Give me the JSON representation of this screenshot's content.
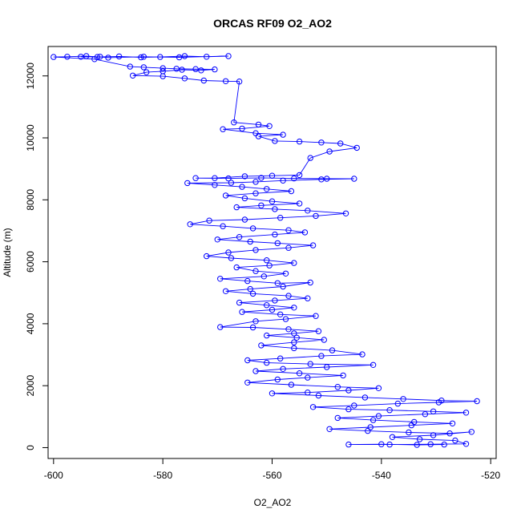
{
  "chart_data": {
    "type": "scatter",
    "title": "ORCAS RF09 O2_AO2",
    "xlabel": "O2_AO2",
    "ylabel": "Altitude (m)",
    "xlim": [
      -601,
      -519
    ],
    "ylim": [
      -350,
      12950
    ],
    "xticks": [
      -600,
      -580,
      -560,
      -540,
      -520
    ],
    "yticks": [
      0,
      2000,
      4000,
      6000,
      8000,
      10000,
      12000
    ],
    "grid": false,
    "legend": "none",
    "color": "#0000ff",
    "series": [
      {
        "points": [
          [
            -591.5,
            12620
          ],
          [
            -595.0,
            12620
          ],
          [
            -592.0,
            12610
          ],
          [
            -588.0,
            12630
          ],
          [
            -584.0,
            12600
          ],
          [
            -580.5,
            12610
          ],
          [
            -576.0,
            12640
          ],
          [
            -572.0,
            12620
          ],
          [
            -568.0,
            12640
          ],
          [
            -577.0,
            12600
          ],
          [
            -583.5,
            12620
          ],
          [
            -590.0,
            12590
          ],
          [
            -594.0,
            12640
          ],
          [
            -597.5,
            12620
          ],
          [
            -600.0,
            12610
          ],
          [
            -592.5,
            12540
          ],
          [
            -586.0,
            12300
          ],
          [
            -583.5,
            12280
          ],
          [
            -580.0,
            12250
          ],
          [
            -577.5,
            12230
          ],
          [
            -574.0,
            12220
          ],
          [
            -570.5,
            12210
          ],
          [
            -573.0,
            12180
          ],
          [
            -576.5,
            12200
          ],
          [
            -580.0,
            12150
          ],
          [
            -583.0,
            12120
          ],
          [
            -585.5,
            12010
          ],
          [
            -580.0,
            11990
          ],
          [
            -576.0,
            11920
          ],
          [
            -572.5,
            11850
          ],
          [
            -568.5,
            11830
          ],
          [
            -566.0,
            11820
          ],
          [
            -567.0,
            10500
          ],
          [
            -562.5,
            10430
          ],
          [
            -560.5,
            10380
          ],
          [
            -565.5,
            10300
          ],
          [
            -569.0,
            10280
          ],
          [
            -563.0,
            10150
          ],
          [
            -558.0,
            10100
          ],
          [
            -562.5,
            10050
          ],
          [
            -559.5,
            9900
          ],
          [
            -555.0,
            9880
          ],
          [
            -551.0,
            9850
          ],
          [
            -547.5,
            9820
          ],
          [
            -544.5,
            9680
          ],
          [
            -549.5,
            9560
          ],
          [
            -553.0,
            9350
          ],
          [
            -555.0,
            8800
          ],
          [
            -560.0,
            8780
          ],
          [
            -565.0,
            8760
          ],
          [
            -570.5,
            8700
          ],
          [
            -574.0,
            8700
          ],
          [
            -568.0,
            8690
          ],
          [
            -562.0,
            8710
          ],
          [
            -556.0,
            8690
          ],
          [
            -550.0,
            8680
          ],
          [
            -545.0,
            8680
          ],
          [
            -551.0,
            8660
          ],
          [
            -558.0,
            8620
          ],
          [
            -563.0,
            8580
          ],
          [
            -567.5,
            8550
          ],
          [
            -575.5,
            8540
          ],
          [
            -570.5,
            8480
          ],
          [
            -565.5,
            8420
          ],
          [
            -561.0,
            8350
          ],
          [
            -556.5,
            8280
          ],
          [
            -563.0,
            8210
          ],
          [
            -568.5,
            8140
          ],
          [
            -565.0,
            8050
          ],
          [
            -560.0,
            7950
          ],
          [
            -555.0,
            7880
          ],
          [
            -562.0,
            7820
          ],
          [
            -566.5,
            7760
          ],
          [
            -559.5,
            7700
          ],
          [
            -553.5,
            7650
          ],
          [
            -546.5,
            7560
          ],
          [
            -552.0,
            7480
          ],
          [
            -558.5,
            7420
          ],
          [
            -565.0,
            7360
          ],
          [
            -571.5,
            7330
          ],
          [
            -575.0,
            7210
          ],
          [
            -569.0,
            7150
          ],
          [
            -563.5,
            7080
          ],
          [
            -557.0,
            7020
          ],
          [
            -554.0,
            6950
          ],
          [
            -559.5,
            6880
          ],
          [
            -566.0,
            6800
          ],
          [
            -570.0,
            6720
          ],
          [
            -564.0,
            6650
          ],
          [
            -559.0,
            6600
          ],
          [
            -552.5,
            6530
          ],
          [
            -557.0,
            6450
          ],
          [
            -563.0,
            6380
          ],
          [
            -568.0,
            6300
          ],
          [
            -572.0,
            6180
          ],
          [
            -567.5,
            6120
          ],
          [
            -561.0,
            6050
          ],
          [
            -556.0,
            5960
          ],
          [
            -560.5,
            5880
          ],
          [
            -566.5,
            5820
          ],
          [
            -563.0,
            5700
          ],
          [
            -557.5,
            5620
          ],
          [
            -561.5,
            5530
          ],
          [
            -569.5,
            5450
          ],
          [
            -564.5,
            5380
          ],
          [
            -559.0,
            5310
          ],
          [
            -553.0,
            5330
          ],
          [
            -558.0,
            5200
          ],
          [
            -564.0,
            5120
          ],
          [
            -568.5,
            5050
          ],
          [
            -563.5,
            4970
          ],
          [
            -557.0,
            4900
          ],
          [
            -553.5,
            4820
          ],
          [
            -559.5,
            4750
          ],
          [
            -566.0,
            4680
          ],
          [
            -561.0,
            4600
          ],
          [
            -556.0,
            4520
          ],
          [
            -560.0,
            4450
          ],
          [
            -565.5,
            4380
          ],
          [
            -558.5,
            4300
          ],
          [
            -552.0,
            4250
          ],
          [
            -557.5,
            4150
          ],
          [
            -563.0,
            4080
          ],
          [
            -569.5,
            3890
          ],
          [
            -563.5,
            3880
          ],
          [
            -557.0,
            3820
          ],
          [
            -551.5,
            3760
          ],
          [
            -556.0,
            3690
          ],
          [
            -561.0,
            3620
          ],
          [
            -555.5,
            3550
          ],
          [
            -550.5,
            3480
          ],
          [
            -556.0,
            3400
          ],
          [
            -562.0,
            3300
          ],
          [
            -556.0,
            3210
          ],
          [
            -549.0,
            3140
          ],
          [
            -543.5,
            3010
          ],
          [
            -551.0,
            2960
          ],
          [
            -558.5,
            2880
          ],
          [
            -564.5,
            2820
          ],
          [
            -561.0,
            2740
          ],
          [
            -553.0,
            2700
          ],
          [
            -541.5,
            2670
          ],
          [
            -550.0,
            2600
          ],
          [
            -558.0,
            2540
          ],
          [
            -563.0,
            2470
          ],
          [
            -555.0,
            2400
          ],
          [
            -547.0,
            2330
          ],
          [
            -553.5,
            2260
          ],
          [
            -559.0,
            2200
          ],
          [
            -564.5,
            2100
          ],
          [
            -556.5,
            2030
          ],
          [
            -548.0,
            1960
          ],
          [
            -540.5,
            1920
          ],
          [
            -546.0,
            1850
          ],
          [
            -553.5,
            1780
          ],
          [
            -560.0,
            1750
          ],
          [
            -551.5,
            1680
          ],
          [
            -543.0,
            1620
          ],
          [
            -536.0,
            1570
          ],
          [
            -529.0,
            1520
          ],
          [
            -522.5,
            1500
          ],
          [
            -529.5,
            1460
          ],
          [
            -537.0,
            1420
          ],
          [
            -545.0,
            1360
          ],
          [
            -552.5,
            1310
          ],
          [
            -546.0,
            1240
          ],
          [
            -538.5,
            1210
          ],
          [
            -530.5,
            1170
          ],
          [
            -524.5,
            1130
          ],
          [
            -532.0,
            1080
          ],
          [
            -540.5,
            1020
          ],
          [
            -548.0,
            960
          ],
          [
            -541.5,
            890
          ],
          [
            -534.0,
            830
          ],
          [
            -527.0,
            780
          ],
          [
            -534.5,
            720
          ],
          [
            -542.0,
            660
          ],
          [
            -549.5,
            600
          ],
          [
            -542.5,
            540
          ],
          [
            -535.0,
            490
          ],
          [
            -527.5,
            460
          ],
          [
            -523.5,
            510
          ],
          [
            -530.5,
            400
          ],
          [
            -538.0,
            340
          ],
          [
            -533.0,
            270
          ],
          [
            -526.5,
            230
          ],
          [
            -524.5,
            120
          ],
          [
            -531.0,
            110
          ],
          [
            -538.5,
            100
          ],
          [
            -546.0,
            100
          ],
          [
            -540.0,
            110
          ],
          [
            -533.5,
            90
          ],
          [
            -528.5,
            100
          ]
        ]
      }
    ]
  }
}
